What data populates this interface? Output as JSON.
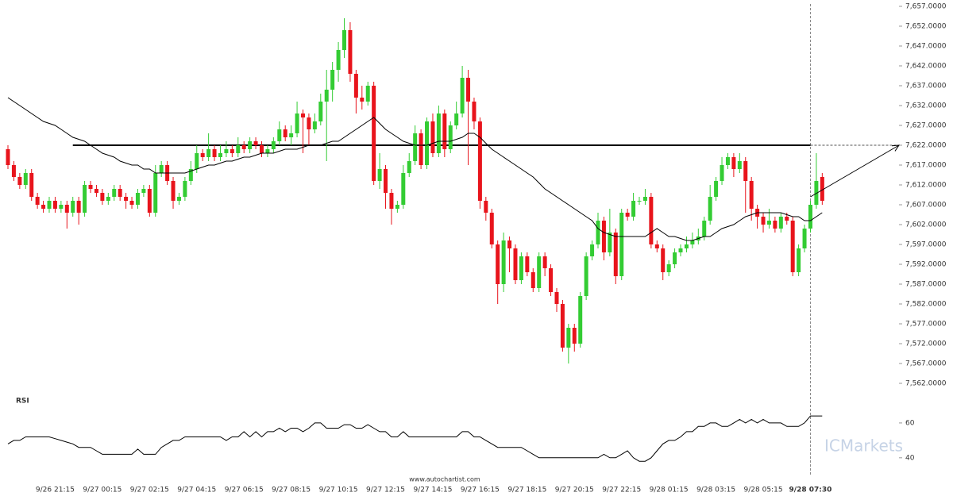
{
  "chart_data": {
    "type": "candlestick",
    "categories": [
      null,
      null,
      null,
      null,
      null,
      null,
      null,
      null,
      "9/26 21:15",
      null,
      null,
      null,
      null,
      null,
      null,
      null,
      "9/27 00:15",
      null,
      null,
      null,
      null,
      null,
      null,
      null,
      "9/27 02:15",
      null,
      null,
      null,
      null,
      null,
      null,
      null,
      "9/27 04:15",
      null,
      null,
      null,
      null,
      null,
      null,
      null,
      "9/27 06:15",
      null,
      null,
      null,
      null,
      null,
      null,
      null,
      "9/27 08:15",
      null,
      null,
      null,
      null,
      null,
      null,
      null,
      "9/27 10:15",
      null,
      null,
      null,
      null,
      null,
      null,
      null,
      "9/27 12:15",
      null,
      null,
      null,
      null,
      null,
      null,
      null,
      "9/27 14:15",
      null,
      null,
      null,
      null,
      null,
      null,
      null,
      "9/27 16:15",
      null,
      null,
      null,
      null,
      null,
      null,
      null,
      "9/27 18:15",
      null,
      null,
      null,
      null,
      null,
      null,
      null,
      "9/27 20:15",
      null,
      null,
      null,
      null,
      null,
      null,
      null,
      "9/27 22:15",
      null,
      null,
      null,
      null,
      null,
      null,
      null,
      "9/28 01:15",
      null,
      null,
      null,
      null,
      null,
      null,
      null,
      "9/28 03:15",
      null,
      null,
      null,
      null,
      null,
      null,
      null,
      "9/28 05:15",
      null,
      null,
      null,
      null,
      null,
      null,
      null,
      "9/28 07:30",
      null,
      null
    ],
    "open": [
      7621,
      7617,
      7614,
      7612,
      7615,
      7609,
      7607,
      7606,
      7608,
      7606,
      7607,
      7605,
      7608,
      7605,
      7612,
      7611,
      7610,
      7608,
      7609,
      7611,
      7609,
      7608,
      7607,
      7610,
      7611,
      7605,
      7615,
      7617,
      7613,
      7608,
      7609,
      7613,
      7616,
      7620,
      7619,
      7621,
      7619,
      7620,
      7621,
      7620,
      7622,
      7621,
      7623,
      7622,
      7620,
      7621,
      7623,
      7626,
      7624,
      7625,
      7630,
      7629,
      7626,
      7628,
      7633,
      7636,
      7641,
      7646,
      7651,
      7640,
      7634,
      7633,
      7637,
      7613,
      7616,
      7610,
      7606,
      7607,
      7615,
      7618,
      7625,
      7617,
      7628,
      7620,
      7630,
      7621,
      7627,
      7630,
      7639,
      7633,
      7628,
      7608,
      7605,
      7597,
      7587,
      7598,
      7596,
      7588,
      7594,
      7590,
      7586,
      7594,
      7591,
      7585,
      7582,
      7571,
      7576,
      7572,
      7584,
      7594,
      7597,
      7603,
      7595,
      7600,
      7589,
      7605,
      7604,
      7608,
      7608,
      7609,
      7597,
      7596,
      7590,
      7592,
      7595,
      7596,
      7597,
      7598,
      7599,
      7603,
      7609,
      7613,
      7617,
      7619,
      7616,
      7618,
      7613,
      7606,
      7604,
      7602,
      7603,
      7601,
      7604,
      7603,
      7590,
      7596,
      7601,
      7607,
      7614
    ],
    "high": [
      7622,
      7618,
      7615,
      7616,
      7616,
      7610,
      7608,
      7609,
      7609,
      7608,
      7608,
      7609,
      7609,
      7613,
      7613,
      7612,
      7611,
      7610,
      7612,
      7612,
      7610,
      7609,
      7611,
      7612,
      7612,
      7617,
      7618,
      7618,
      7614,
      7610,
      7614,
      7618,
      7622,
      7621,
      7625,
      7622,
      7622,
      7623,
      7622,
      7624,
      7623,
      7624,
      7624,
      7623,
      7622,
      7624,
      7628,
      7627,
      7627,
      7633,
      7631,
      7630,
      7630,
      7635,
      7641,
      7643,
      7648,
      7654,
      7653,
      7641,
      7637,
      7638,
      7638,
      7620,
      7617,
      7611,
      7608,
      7617,
      7620,
      7627,
      7626,
      7629,
      7630,
      7632,
      7631,
      7628,
      7633,
      7642,
      7641,
      7634,
      7629,
      7609,
      7606,
      7598,
      7600,
      7599,
      7597,
      7595,
      7595,
      7591,
      7595,
      7595,
      7592,
      7586,
      7583,
      7577,
      7577,
      7585,
      7595,
      7598,
      7605,
      7604,
      7606,
      7601,
      7606,
      7606,
      7610,
      7609,
      7611,
      7610,
      7598,
      7597,
      7593,
      7596,
      7597,
      7599,
      7600,
      7601,
      7604,
      7612,
      7614,
      7619,
      7620,
      7620,
      7620,
      7619,
      7614,
      7607,
      7605,
      7606,
      7604,
      7605,
      7605,
      7604,
      7597,
      7602,
      7608,
      7620,
      7615
    ],
    "low": [
      7616,
      7613,
      7611,
      7611,
      7608,
      7606,
      7605,
      7605,
      7605,
      7605,
      7601,
      7604,
      7602,
      7604,
      7610,
      7609,
      7607,
      7607,
      7608,
      7608,
      7606,
      7606,
      7606,
      7609,
      7604,
      7604,
      7614,
      7612,
      7606,
      7607,
      7608,
      7612,
      7615,
      7618,
      7618,
      7618,
      7618,
      7619,
      7619,
      7619,
      7620,
      7620,
      7621,
      7619,
      7619,
      7620,
      7622,
      7623,
      7622,
      7624,
      7620,
      7622,
      7625,
      7627,
      7618,
      7633,
      7638,
      7644,
      7638,
      7630,
      7631,
      7632,
      7612,
      7611,
      7606,
      7602,
      7605,
      7606,
      7614,
      7617,
      7616,
      7616,
      7619,
      7619,
      7619,
      7620,
      7626,
      7629,
      7617,
      7626,
      7606,
      7603,
      7596,
      7582,
      7585,
      7590,
      7587,
      7587,
      7589,
      7585,
      7585,
      7589,
      7584,
      7580,
      7570,
      7567,
      7570,
      7571,
      7583,
      7593,
      7596,
      7593,
      7594,
      7587,
      7588,
      7603,
      7603,
      7607,
      7607,
      7596,
      7595,
      7588,
      7589,
      7591,
      7594,
      7595,
      7596,
      7597,
      7598,
      7602,
      7608,
      7612,
      7616,
      7614,
      7615,
      7605,
      7603,
      7601,
      7600,
      7601,
      7600,
      7600,
      7602,
      7589,
      7589,
      7595,
      7600,
      7606,
      7607
    ],
    "close": [
      7617,
      7614,
      7612,
      7615,
      7609,
      7607,
      7606,
      7608,
      7606,
      7607,
      7605,
      7608,
      7605,
      7612,
      7611,
      7610,
      7608,
      7609,
      7611,
      7609,
      7608,
      7607,
      7610,
      7611,
      7605,
      7615,
      7617,
      7613,
      7608,
      7609,
      7613,
      7616,
      7620,
      7619,
      7621,
      7619,
      7620,
      7621,
      7620,
      7622,
      7621,
      7623,
      7622,
      7620,
      7621,
      7623,
      7626,
      7624,
      7625,
      7630,
      7629,
      7626,
      7628,
      7633,
      7636,
      7641,
      7646,
      7651,
      7640,
      7634,
      7633,
      7637,
      7613,
      7616,
      7610,
      7606,
      7607,
      7615,
      7618,
      7625,
      7617,
      7628,
      7620,
      7630,
      7621,
      7627,
      7630,
      7639,
      7633,
      7628,
      7608,
      7605,
      7597,
      7587,
      7598,
      7596,
      7588,
      7594,
      7590,
      7586,
      7594,
      7591,
      7585,
      7582,
      7571,
      7576,
      7572,
      7584,
      7594,
      7597,
      7603,
      7595,
      7600,
      7589,
      7605,
      7604,
      7608,
      7608,
      7609,
      7597,
      7596,
      7590,
      7592,
      7595,
      7596,
      7597,
      7598,
      7599,
      7603,
      7609,
      7613,
      7617,
      7619,
      7616,
      7618,
      7613,
      7606,
      7604,
      7602,
      7603,
      7601,
      7604,
      7603,
      7590,
      7596,
      7601,
      7607,
      7613,
      7608
    ],
    "up_color": "#33cc33",
    "down_color": "#e8141c",
    "ylim": [
      7562,
      7657
    ],
    "yticks": [
      {
        "value": 7657,
        "label": "7,657.0000"
      },
      {
        "value": 7652,
        "label": "7,652.0000"
      },
      {
        "value": 7647,
        "label": "7,647.0000"
      },
      {
        "value": 7642,
        "label": "7,642.0000"
      },
      {
        "value": 7637,
        "label": "7,637.0000"
      },
      {
        "value": 7632,
        "label": "7,632.0000"
      },
      {
        "value": 7627,
        "label": "7,627.0000"
      },
      {
        "value": 7622,
        "label": "7,622.0000"
      },
      {
        "value": 7617,
        "label": "7,617.0000"
      },
      {
        "value": 7612,
        "label": "7,612.0000"
      },
      {
        "value": 7607,
        "label": "7,607.0000"
      },
      {
        "value": 7602,
        "label": "7,602.0000"
      },
      {
        "value": 7597,
        "label": "7,597.0000"
      },
      {
        "value": 7592,
        "label": "7,592.0000"
      },
      {
        "value": 7587,
        "label": "7,587.0000"
      },
      {
        "value": 7582,
        "label": "7,582.0000"
      },
      {
        "value": 7577,
        "label": "7,577.0000"
      },
      {
        "value": 7572,
        "label": "7,572.0000"
      },
      {
        "value": 7567,
        "label": "7,567.0000"
      },
      {
        "value": 7562,
        "label": "7,562.0000"
      }
    ],
    "ma": {
      "color": "#000000",
      "values": [
        7634,
        7633,
        7632,
        7631,
        7630,
        7629,
        7628,
        7627.5,
        7627,
        7626,
        7625,
        7624,
        7623.5,
        7623,
        7622,
        7621,
        7620,
        7619.5,
        7619,
        7618,
        7617.5,
        7617,
        7617,
        7616,
        7616,
        7615,
        7615,
        7615,
        7615,
        7615,
        7615,
        7615.5,
        7616,
        7616.5,
        7617,
        7617,
        7617.5,
        7618,
        7618,
        7618.5,
        7619,
        7619,
        7619.5,
        7620,
        7620,
        7620,
        7620.5,
        7621,
        7621,
        7621,
        7621.5,
        7622,
        7622,
        7622,
        7622.5,
        7623,
        7623,
        7624,
        7625,
        7626,
        7627,
        7628,
        7629,
        7627.5,
        7626,
        7625,
        7624,
        7623,
        7622.5,
        7622,
        7622,
        7622,
        7622.5,
        7623,
        7623,
        7623,
        7623.5,
        7624,
        7625,
        7625,
        7624,
        7622.5,
        7621,
        7620,
        7619,
        7618,
        7617,
        7616,
        7615,
        7614,
        7612.5,
        7611,
        7610,
        7609,
        7608,
        7607,
        7606,
        7605,
        7604,
        7603,
        7601,
        7600,
        7599.5,
        7599,
        7599,
        7599,
        7599,
        7599,
        7599,
        7600,
        7601,
        7600,
        7599,
        7599,
        7598.5,
        7598,
        7598,
        7598.5,
        7599,
        7599,
        7600,
        7601,
        7601.5,
        7602,
        7603,
        7604,
        7604.5,
        7605,
        7605,
        7605,
        7605,
        7605,
        7604.5,
        7604,
        7604,
        7603,
        7603,
        7604,
        7605
      ]
    },
    "resistance": 7622,
    "forecast": {
      "from": 7609,
      "to": 7622
    },
    "rsi": {
      "title": "RSI",
      "ylim": [
        34,
        75
      ],
      "yticks": [
        60,
        40
      ],
      "values": [
        48,
        50,
        50,
        52,
        52,
        52,
        52,
        52,
        51,
        50,
        49,
        48,
        46,
        46,
        46,
        44,
        42,
        42,
        42,
        42,
        42,
        42,
        45,
        42,
        42,
        42,
        46,
        48,
        50,
        50,
        52,
        52,
        52,
        52,
        52,
        52,
        52,
        50,
        52,
        52,
        55,
        52,
        55,
        52,
        55,
        55,
        57,
        55,
        57,
        57,
        55,
        57,
        60,
        60,
        57,
        57,
        57,
        59,
        59,
        57,
        57,
        59,
        57,
        55,
        55,
        52,
        52,
        55,
        52,
        52,
        52,
        52,
        52,
        52,
        52,
        52,
        52,
        55,
        55,
        52,
        52,
        50,
        48,
        46,
        46,
        46,
        46,
        46,
        44,
        42,
        40,
        40,
        40,
        40,
        40,
        40,
        40,
        40,
        40,
        40,
        40,
        42,
        40,
        40,
        42,
        44,
        40,
        38,
        38,
        40,
        44,
        48,
        50,
        50,
        52,
        55,
        55,
        58,
        58,
        60,
        60,
        58,
        58,
        60,
        62,
        60,
        62,
        60,
        62,
        60,
        60,
        60,
        58,
        58,
        58,
        60,
        64,
        64,
        64
      ]
    },
    "source": "www.autochartist.com",
    "watermark": "ICMarkets"
  }
}
